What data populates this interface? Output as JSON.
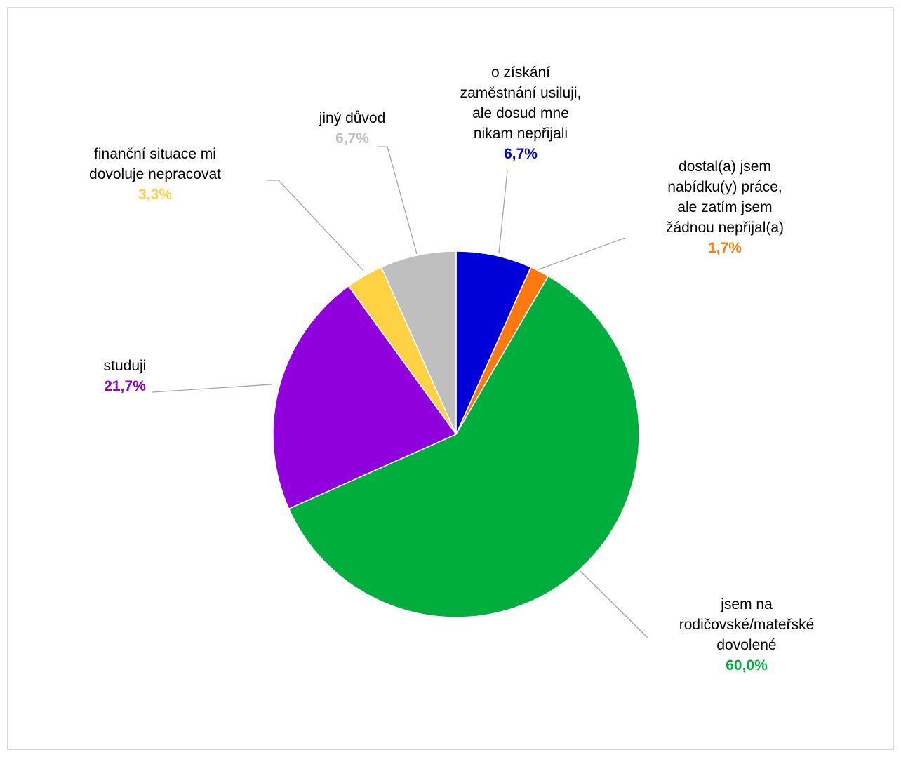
{
  "chart_data": {
    "type": "pie",
    "title": "",
    "start_angle_deg": 0,
    "direction": "clockwise",
    "slices": [
      {
        "label": "o získání zaměstnání usiluji, ale dosud mne nikam nepřijali",
        "label_lines": [
          "o získání",
          "zaměstnání usiluji,",
          "ale dosud mne",
          "nikam nepřijali"
        ],
        "value": 6.7,
        "value_label": "6,7%",
        "color": "#0000D8"
      },
      {
        "label": "dostal(a) jsem nabídku(y) práce, ale zatím jsem žádnou nepřijal(a)",
        "label_lines": [
          "dostal(a) jsem",
          "nabídku(y) práce,",
          "ale zatím jsem",
          "žádnou nepřijal(a)"
        ],
        "value": 1.7,
        "value_label": "1,7%",
        "color": "#FF7A0E"
      },
      {
        "label": "jsem na rodičovské/mateřské dovolené",
        "label_lines": [
          "jsem na",
          "rodičovské/mateřské",
          "dovolené"
        ],
        "value": 60.0,
        "value_label": "60,0%",
        "color": "#00AE3E"
      },
      {
        "label": "studuji",
        "label_lines": [
          "studuji"
        ],
        "value": 21.7,
        "value_label": "21,7%",
        "color": "#9000DC"
      },
      {
        "label": "finanční situace mi dovoluje nepracovat",
        "label_lines": [
          "finanční situace mi",
          "dovoluje nepracovat"
        ],
        "value": 3.3,
        "value_label": "3,3%",
        "color": "#FFD244"
      },
      {
        "label": "jiný důvod",
        "label_lines": [
          "jiný důvod"
        ],
        "value": 6.7,
        "value_label": "6,7%",
        "color": "#BFBFBF"
      }
    ],
    "leader_line_color": "#A6A6A6",
    "legend": "none",
    "label_placement": "outside with leader lines"
  }
}
